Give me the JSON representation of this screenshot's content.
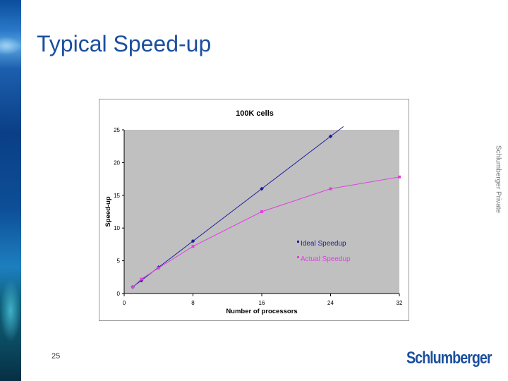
{
  "slide": {
    "title": "Typical Speed-up",
    "side_label": "Schlumberger Private",
    "page_number": "25",
    "logo_text": "Schlumberger"
  },
  "colors": {
    "title": "#1b4f9e",
    "plot_bg": "#c0c0c0",
    "ideal": "#1c1c9c",
    "actual": "#e040e0"
  },
  "chart_data": {
    "type": "line",
    "title": "100K cells",
    "xlabel": "Number of processors",
    "ylabel": "Speed-up",
    "xlim": [
      0,
      32
    ],
    "ylim": [
      0,
      25
    ],
    "xticks": [
      0,
      8,
      16,
      24,
      32
    ],
    "yticks": [
      0,
      5,
      10,
      15,
      20,
      25
    ],
    "grid": false,
    "legend_position": "center-inside",
    "series": [
      {
        "name": "Ideal Speedup",
        "x": [
          1,
          2,
          4,
          8,
          16,
          24,
          25.5
        ],
        "y": [
          1,
          2,
          4,
          8,
          16,
          24,
          25.5
        ]
      },
      {
        "name": "Actual Speedup",
        "x": [
          1,
          2,
          4,
          8,
          16,
          24,
          32
        ],
        "y": [
          1,
          2.2,
          3.9,
          7.2,
          12.5,
          16,
          17.8
        ]
      }
    ]
  }
}
